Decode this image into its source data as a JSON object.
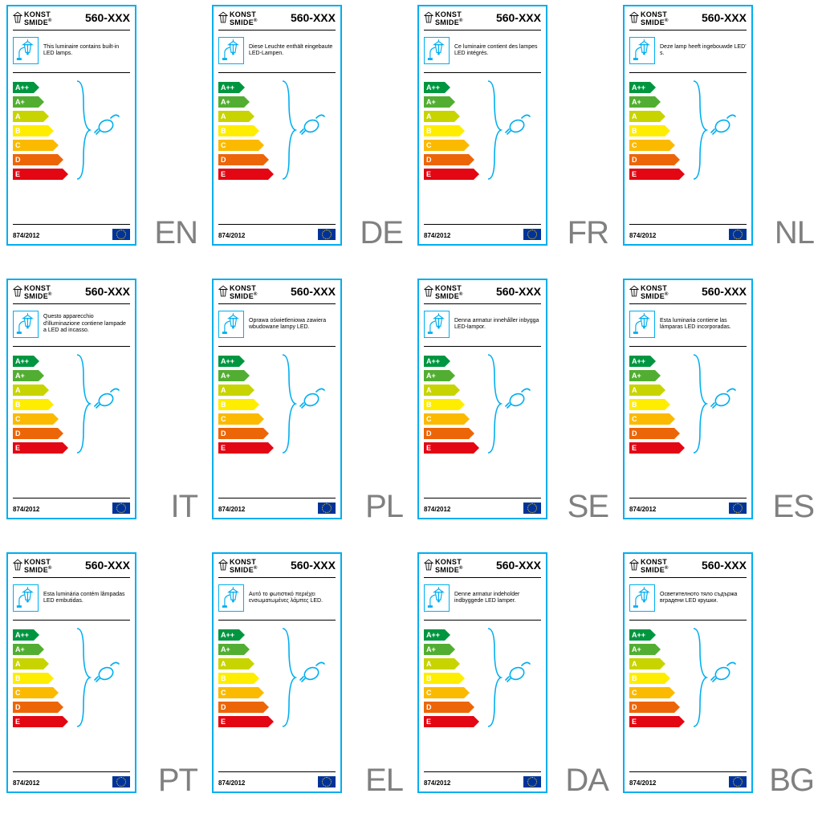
{
  "brand": "KONST\nSMIDE",
  "model": "560-XXX",
  "regulation": "874/2012",
  "energy_classes": [
    {
      "label": "A++",
      "color": "#009640",
      "width": 26
    },
    {
      "label": "A+",
      "color": "#52ae32",
      "width": 32
    },
    {
      "label": "A",
      "color": "#c8d400",
      "width": 38
    },
    {
      "label": "B",
      "color": "#ffed00",
      "width": 44
    },
    {
      "label": "C",
      "color": "#fbba00",
      "width": 50
    },
    {
      "label": "D",
      "color": "#ec6608",
      "width": 56
    },
    {
      "label": "E",
      "color": "#e30613",
      "width": 62
    }
  ],
  "cells": [
    {
      "lang": "EN",
      "desc": "This luminaire contains built-in LED lamps."
    },
    {
      "lang": "DE",
      "desc": "Diese Leuchte enthält eingebaute LED-Lampen."
    },
    {
      "lang": "FR",
      "desc": "Ce luminaire contient des lampes LED intégrés."
    },
    {
      "lang": "NL",
      "desc": "Deze lamp heeft ingebouwde LED' s."
    },
    {
      "lang": "IT",
      "desc": "Questo apparecchio d'illuminazione contiene lampade a LED ad incasso."
    },
    {
      "lang": "PL",
      "desc": "Oprawa oświetleniowa zawiera wbudowane lampy LED."
    },
    {
      "lang": "SE",
      "desc": "Denna armatur innehåller inbygga LED-lampor."
    },
    {
      "lang": "ES",
      "desc": "Esta luminaria contiene las lámparas LED incorporadas."
    },
    {
      "lang": "PT",
      "desc": "Esta luminária contém lâmpadas LED embutidas."
    },
    {
      "lang": "EL",
      "desc": "Αυτό το φωτιστικό περιέχει ενσωματωμένες λάμπες LED."
    },
    {
      "lang": "DA",
      "desc": "Denne armatur indeholder indbyggede LED lamper."
    },
    {
      "lang": "BG",
      "desc": "Осветителното тяло съдържа вградени LED крушки."
    }
  ],
  "colors": {
    "border": "#00aeef",
    "text": "#000000",
    "lang": "#808080",
    "eu_blue": "#003399",
    "eu_gold": "#ffcc00"
  }
}
